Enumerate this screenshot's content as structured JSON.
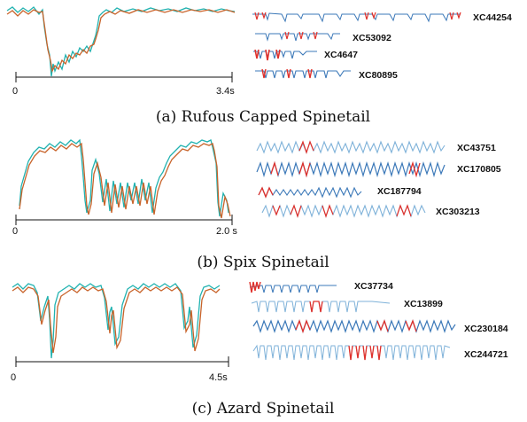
{
  "colors": {
    "teal": "#20b2b0",
    "orange": "#c8632a",
    "blue": "#3b78b8",
    "red": "#e0302a",
    "lightblue": "#7fb2d9"
  },
  "panels": [
    {
      "caption": "(a) Rufous Capped Spinetail",
      "x_start": "0",
      "x_end": "3.4s",
      "recordings": [
        "XC44254",
        "XC53092",
        "XC4647",
        "XC80895"
      ]
    },
    {
      "caption": "(b) Spix Spinetail",
      "x_start": "0",
      "x_end": "2.0 s",
      "recordings": [
        "XC43751",
        "XC170805",
        "XC187794",
        "XC303213"
      ]
    },
    {
      "caption": "(c) Azard Spinetail",
      "x_start": "0",
      "x_end": "4.5s",
      "recordings": [
        "XC37734",
        "XC13899",
        "XC230184",
        "XC244721"
      ]
    }
  ]
}
